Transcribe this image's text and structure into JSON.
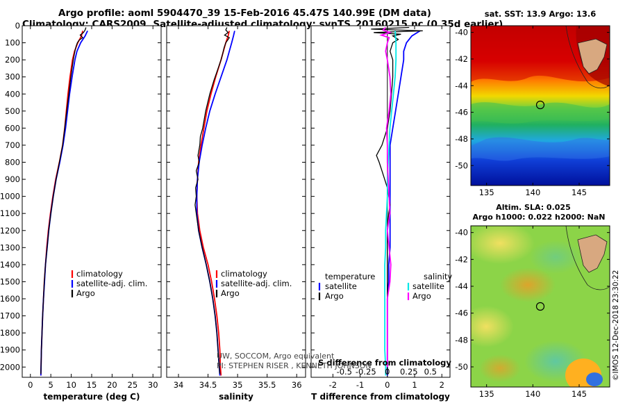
{
  "title": {
    "line1": "Argo profile: aoml 5904470_39 15-Feb-2016 45.47S 140.99E (DM data)",
    "line2": "Climatology: CARS2009. Satellite-adjusted climatology: synTS_20160215.nc (0.35d earlier)"
  },
  "sst_title": "sat. SST: 13.9 Argo: 13.6",
  "sla_title_1": "Altim. SLA: 0.025",
  "sla_title_2": "Argo h1000: 0.022 h2000: NaN",
  "credit": "©IMOS 12-Dec-2018 23:30:22",
  "note_1": "UW, SOCCOM, Argo equivalent",
  "note_2": "PI: STEPHEN RISER , KENNETH JOHNSON",
  "colors": {
    "climatology": "#ff0000",
    "satellite": "#0000ff",
    "argo": "#000000",
    "salinity_satellite": "#00e8e8",
    "salinity_argo": "#ff00ff"
  },
  "chart_data": [
    {
      "type": "line",
      "id": "temperature",
      "xlabel": "temperature (deg C)",
      "xlim": [
        -2,
        32
      ],
      "xticks": [
        "0",
        "5",
        "10",
        "15",
        "20",
        "25",
        "30"
      ],
      "ylim": [
        0,
        2060
      ],
      "ylabel": "",
      "yticks": [
        "0",
        "100",
        "200",
        "300",
        "400",
        "500",
        "600",
        "700",
        "800",
        "900",
        "1000",
        "1100",
        "1200",
        "1300",
        "1400",
        "1500",
        "1600",
        "1700",
        "1800",
        "1900",
        "2000"
      ],
      "legend": [
        "climatology",
        "satellite-adj. clim.",
        "Argo"
      ],
      "series": [
        {
          "name": "climatology",
          "depth": [
            30,
            60,
            100,
            150,
            200,
            300,
            400,
            500,
            600,
            700,
            800,
            900,
            1000,
            1100,
            1200,
            1300,
            1400,
            1500,
            1600,
            1700,
            1800,
            1900,
            2000,
            2050
          ],
          "values": [
            12.8,
            12.5,
            11.6,
            10.8,
            10.3,
            9.7,
            9.2,
            8.8,
            8.4,
            7.9,
            7.1,
            6.2,
            5.5,
            4.9,
            4.4,
            4.0,
            3.7,
            3.4,
            3.2,
            3.0,
            2.85,
            2.7,
            2.6,
            2.55
          ]
        },
        {
          "name": "satellite-adj. clim.",
          "depth": [
            30,
            60,
            100,
            150,
            200,
            300,
            400,
            500,
            600,
            700,
            800,
            900,
            1000,
            1100,
            1200,
            1300,
            1400,
            1500,
            1600,
            1700,
            1800,
            1900,
            2000,
            2050
          ],
          "values": [
            14.0,
            13.4,
            12.3,
            11.4,
            10.9,
            10.2,
            9.6,
            9.1,
            8.6,
            8.0,
            7.2,
            6.3,
            5.6,
            5.0,
            4.5,
            4.1,
            3.7,
            3.45,
            3.2,
            3.0,
            2.85,
            2.7,
            2.6,
            2.55
          ]
        },
        {
          "name": "Argo",
          "depth": [
            10,
            25,
            40,
            55,
            70,
            85,
            100,
            120,
            150,
            200,
            300,
            400,
            500,
            600,
            700,
            800,
            900,
            1000,
            1100,
            1200,
            1300,
            1400,
            1500,
            1600,
            1700,
            1800,
            1900,
            2000,
            2040
          ],
          "values": [
            13.6,
            13.4,
            13.0,
            12.2,
            12.8,
            11.9,
            11.5,
            11.2,
            10.9,
            10.5,
            9.9,
            9.4,
            8.9,
            8.4,
            7.9,
            7.1,
            6.3,
            5.6,
            5.0,
            4.5,
            4.1,
            3.7,
            3.4,
            3.2,
            3.0,
            2.85,
            2.7,
            2.6,
            2.55
          ]
        }
      ]
    },
    {
      "type": "line",
      "id": "salinity",
      "xlabel": "salinity",
      "xlim": [
        33.8,
        36.15
      ],
      "xticks": [
        "34",
        "34.5",
        "35",
        "35.5",
        "36"
      ],
      "ylim": [
        0,
        2060
      ],
      "legend": [
        "climatology",
        "satellite-adj. clim.",
        "Argo"
      ],
      "series": [
        {
          "name": "climatology",
          "depth": [
            30,
            60,
            100,
            150,
            200,
            300,
            400,
            500,
            600,
            700,
            800,
            900,
            1000,
            1100,
            1200,
            1300,
            1400,
            1500,
            1600,
            1700,
            1800,
            1900,
            2000,
            2050
          ],
          "values": [
            34.86,
            34.84,
            34.8,
            34.76,
            34.72,
            34.63,
            34.55,
            34.48,
            34.43,
            34.38,
            34.34,
            34.32,
            34.31,
            34.32,
            34.36,
            34.42,
            34.5,
            34.56,
            34.61,
            34.65,
            34.68,
            34.7,
            34.71,
            34.72
          ]
        },
        {
          "name": "satellite-adj. clim.",
          "depth": [
            30,
            60,
            100,
            150,
            200,
            300,
            400,
            500,
            600,
            700,
            800,
            900,
            1000,
            1100,
            1200,
            1300,
            1400,
            1500,
            1600,
            1700,
            1800,
            1900,
            2000,
            2050
          ],
          "values": [
            34.95,
            34.93,
            34.9,
            34.86,
            34.82,
            34.72,
            34.62,
            34.53,
            34.46,
            34.4,
            34.35,
            34.32,
            34.31,
            34.31,
            34.34,
            34.4,
            34.47,
            34.53,
            34.58,
            34.62,
            34.65,
            34.67,
            34.69,
            34.7
          ]
        },
        {
          "name": "Argo",
          "depth": [
            10,
            25,
            40,
            55,
            70,
            85,
            100,
            130,
            160,
            200,
            260,
            320,
            400,
            500,
            600,
            650,
            700,
            760,
            800,
            850,
            900,
            950,
            1000,
            1050,
            1100,
            1150,
            1200,
            1300,
            1400,
            1500,
            1600,
            1700,
            1800,
            1900,
            2000,
            2040
          ],
          "values": [
            34.82,
            34.8,
            34.84,
            34.78,
            34.86,
            34.83,
            34.8,
            34.77,
            34.75,
            34.72,
            34.66,
            34.6,
            34.53,
            34.46,
            34.41,
            34.37,
            34.36,
            34.33,
            34.35,
            34.3,
            34.33,
            34.29,
            34.3,
            34.28,
            34.3,
            34.32,
            34.34,
            34.4,
            34.47,
            34.53,
            34.58,
            34.62,
            34.65,
            34.67,
            34.69,
            34.7
          ]
        }
      ]
    },
    {
      "type": "line",
      "id": "difference",
      "xlabel": "T difference from climatology",
      "xlabel_top": "S difference from climatology",
      "xlim": [
        -2.8,
        2.3
      ],
      "xticks": [
        "-2",
        "-1",
        "0",
        "1",
        "2"
      ],
      "xticks_top": [
        "-0.5",
        "-0.25",
        "0",
        "0.25",
        "0.5"
      ],
      "ylim": [
        0,
        2060
      ],
      "legend_left_title": "temperature",
      "legend_right_title": "salinity",
      "legend_left": [
        "satellite",
        "Argo"
      ],
      "legend_right": [
        "satellite",
        "Argo"
      ],
      "series": [
        {
          "name": "T satellite",
          "depth": [
            30,
            60,
            100,
            150,
            200,
            300,
            400,
            500,
            600,
            700,
            800,
            900,
            1000,
            1100,
            1200,
            1300,
            1400,
            1500,
            1600,
            1700,
            1800,
            1900,
            2000,
            2050
          ],
          "values": [
            1.2,
            0.9,
            0.7,
            0.6,
            0.6,
            0.5,
            0.4,
            0.3,
            0.2,
            0.1,
            0.1,
            0.1,
            0.1,
            0.1,
            0.1,
            0.1,
            0.05,
            0.05,
            0.0,
            0.0,
            0.0,
            0.0,
            0.0,
            0.0
          ]
        },
        {
          "name": "T Argo",
          "depth": [
            10,
            20,
            30,
            40,
            50,
            60,
            80,
            100,
            150,
            200,
            300,
            400,
            500,
            600,
            650,
            700,
            760,
            800,
            850,
            900,
            950,
            1000,
            1050,
            1100,
            1200,
            1300,
            1400,
            1500,
            1600,
            1700,
            1800,
            1900,
            2000,
            2040
          ],
          "values": [
            0.8,
            -0.6,
            1.3,
            -0.5,
            0.5,
            0.2,
            0.4,
            0.2,
            0.1,
            0.2,
            0.2,
            0.15,
            0.1,
            0.0,
            -0.1,
            -0.2,
            -0.4,
            -0.3,
            -0.2,
            -0.1,
            0.0,
            0.05,
            0.1,
            0.05,
            0.0,
            0.0,
            0.0,
            0.0,
            0.0,
            0.0,
            0.0,
            0.0,
            0.0,
            0.0
          ]
        },
        {
          "name": "S satellite",
          "depth": [
            30,
            100,
            200,
            300,
            400,
            500,
            600,
            700,
            800,
            900,
            1000,
            1100,
            1200,
            1300,
            1400,
            1500,
            1600,
            1700,
            1800,
            1900,
            2000,
            2050
          ],
          "values": [
            0.09,
            0.1,
            0.1,
            0.09,
            0.07,
            0.05,
            0.03,
            0.02,
            0.01,
            0.0,
            0.0,
            -0.01,
            -0.02,
            -0.02,
            -0.03,
            -0.03,
            -0.03,
            -0.03,
            -0.03,
            -0.03,
            -0.02,
            -0.02
          ]
        },
        {
          "name": "S Argo",
          "depth": [
            10,
            25,
            40,
            55,
            70,
            100,
            150,
            200,
            300,
            400,
            500,
            600,
            700,
            800,
            900,
            1000,
            1100,
            1200,
            1300,
            1400,
            1500,
            1600,
            1700,
            1800,
            1900,
            2000
          ],
          "values": [
            -0.02,
            -0.05,
            0.03,
            -0.07,
            0.02,
            0.0,
            -0.02,
            0.0,
            0.03,
            0.04,
            0.02,
            -0.01,
            0.0,
            0.0,
            0.01,
            0.02,
            0.03,
            0.0,
            0.02,
            0.04,
            0.03,
            0.0,
            0.0,
            0.0,
            0.0,
            0.0
          ]
        }
      ]
    }
  ],
  "maps": [
    {
      "id": "sst-map",
      "ylabels": [
        "-40",
        "-42",
        "-44",
        "-46",
        "-48",
        "-50"
      ],
      "xlabels": [
        "135",
        "140",
        "145"
      ]
    },
    {
      "id": "sla-map",
      "ylabels": [
        "-40",
        "-42",
        "-44",
        "-46",
        "-48",
        "-50"
      ],
      "xlabels": [
        "135",
        "140",
        "145"
      ]
    }
  ]
}
